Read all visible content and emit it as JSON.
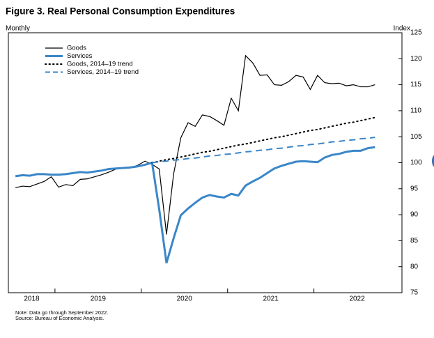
{
  "chart_data": {
    "type": "line",
    "title": "Figure 3. Real Personal Consumption Expenditures",
    "left_label": "Monthly",
    "ylabel": "Index",
    "notes": [
      "Note: Data go through September 2022.",
      "Source: Bureau of Economic Analysis."
    ],
    "x": [
      2018.542,
      2018.625,
      2018.708,
      2018.792,
      2018.875,
      2018.958,
      2019.042,
      2019.125,
      2019.208,
      2019.292,
      2019.375,
      2019.458,
      2019.542,
      2019.625,
      2019.708,
      2019.792,
      2019.875,
      2019.958,
      2020.042,
      2020.125,
      2020.208,
      2020.292,
      2020.375,
      2020.458,
      2020.542,
      2020.625,
      2020.708,
      2020.792,
      2020.875,
      2020.958,
      2021.042,
      2021.125,
      2021.208,
      2021.292,
      2021.375,
      2021.458,
      2021.542,
      2021.625,
      2021.708,
      2021.792,
      2021.875,
      2021.958,
      2022.042,
      2022.125,
      2022.208,
      2022.292,
      2022.375,
      2022.458,
      2022.542,
      2022.625,
      2022.708
    ],
    "series": [
      {
        "name": "Goods",
        "color": "#000000",
        "style": "solid",
        "width": 1.2,
        "values": [
          95.2,
          95.5,
          95.4,
          95.9,
          96.4,
          97.3,
          95.3,
          95.8,
          95.6,
          96.8,
          96.9,
          97.3,
          97.7,
          98.2,
          98.8,
          98.9,
          99.0,
          99.5,
          100.3,
          99.7,
          98.8,
          86.2,
          97.9,
          104.8,
          107.7,
          107.0,
          109.2,
          108.9,
          108.1,
          107.2,
          112.4,
          110.0,
          120.6,
          119.2,
          116.8,
          116.9,
          115.0,
          114.9,
          115.6,
          116.8,
          116.5,
          114.1,
          116.8,
          115.4,
          115.2,
          115.3,
          114.8,
          115.0,
          114.6,
          114.6,
          115.0
        ]
      },
      {
        "name": "Services",
        "color": "#3a86c8",
        "style": "solid",
        "width": 3,
        "values": [
          97.4,
          97.6,
          97.5,
          97.8,
          97.8,
          97.7,
          97.7,
          97.8,
          98.0,
          98.2,
          98.1,
          98.3,
          98.5,
          98.8,
          98.9,
          99.0,
          99.1,
          99.3,
          99.6,
          100.0,
          91.0,
          80.7,
          85.5,
          89.9,
          91.2,
          92.3,
          93.3,
          93.8,
          93.5,
          93.3,
          94.0,
          93.7,
          95.6,
          96.4,
          97.1,
          98.0,
          98.9,
          99.4,
          99.8,
          100.2,
          100.3,
          100.2,
          100.1,
          101.0,
          101.5,
          101.7,
          102.1,
          102.3,
          102.3,
          102.8,
          103.0
        ]
      },
      {
        "name": "Goods, 2014–19 trend",
        "color": "#000000",
        "style": "dotted",
        "width": 2,
        "values": [
          null,
          null,
          null,
          null,
          null,
          null,
          null,
          null,
          null,
          null,
          null,
          null,
          null,
          null,
          null,
          null,
          null,
          null,
          null,
          100.0,
          100.3,
          100.6,
          100.8,
          101.1,
          101.4,
          101.7,
          102.0,
          102.2,
          102.5,
          102.8,
          103.1,
          103.4,
          103.6,
          103.9,
          104.2,
          104.5,
          104.8,
          105.0,
          105.3,
          105.6,
          105.9,
          106.2,
          106.4,
          106.7,
          107.0,
          107.3,
          107.6,
          107.8,
          108.1,
          108.4,
          108.7
        ]
      },
      {
        "name": "Services, 2014–19 trend",
        "color": "#3a86c8",
        "style": "dashed",
        "width": 2,
        "values": [
          null,
          null,
          null,
          null,
          null,
          null,
          null,
          null,
          null,
          null,
          null,
          null,
          null,
          null,
          null,
          null,
          null,
          null,
          null,
          100.0,
          100.2,
          100.3,
          100.5,
          100.6,
          100.8,
          100.9,
          101.1,
          101.3,
          101.4,
          101.6,
          101.7,
          101.9,
          102.1,
          102.2,
          102.4,
          102.5,
          102.7,
          102.8,
          103.0,
          103.2,
          103.3,
          103.5,
          103.6,
          103.8,
          104.0,
          104.1,
          104.3,
          104.4,
          104.6,
          104.7,
          104.9
        ]
      }
    ],
    "xlim": [
      2018.46,
      2023.02
    ],
    "xticks": [
      {
        "value": 2018.73,
        "label": "2018"
      },
      {
        "value": 2019.5,
        "label": "2019"
      },
      {
        "value": 2020.5,
        "label": "2020"
      },
      {
        "value": 2021.5,
        "label": "2021"
      },
      {
        "value": 2022.5,
        "label": "2022"
      }
    ],
    "year_boundaries": [
      2019,
      2020,
      2021,
      2022
    ],
    "ylim": [
      75,
      125
    ],
    "yticks": [
      75,
      80,
      85,
      90,
      95,
      100,
      105,
      110,
      115,
      120,
      125
    ],
    "y_axis_side": "right",
    "grid": false
  }
}
